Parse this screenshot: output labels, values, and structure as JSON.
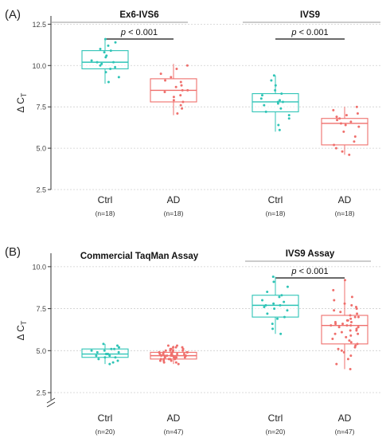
{
  "colors": {
    "ctrl": "#2ec4b6",
    "ad": "#ef6f6c",
    "axis": "#333333",
    "grid": "#cfcfcf",
    "bracket": "#111111",
    "header_line": "#999999"
  },
  "chart_data": [
    {
      "type": "box",
      "panel_label": "(A)",
      "ylabel_main": "Δ C",
      "ylabel_sub": "T",
      "ylim": [
        2.5,
        13.0
      ],
      "yticks": [
        2.5,
        5.0,
        7.5,
        10.0,
        12.5
      ],
      "ytick_labels": [
        "2.5",
        "5.0",
        "7.5",
        "10.0",
        "12.5"
      ],
      "grid": true,
      "groups": [
        {
          "title": "Ex6-IVS6",
          "sig_label_italic": "p",
          "sig_label_rest": " < 0.001",
          "boxes": [
            {
              "name": "Ctrl",
              "n": "(n=18)",
              "group": "ctrl",
              "q1": 9.8,
              "median": 10.2,
              "q3": 10.9,
              "whisker_low": 8.9,
              "whisker_high": 11.6,
              "points": [
                9.0,
                9.3,
                9.6,
                9.8,
                9.9,
                10.0,
                10.1,
                10.2,
                10.2,
                10.3,
                10.5,
                10.6,
                10.8,
                10.9,
                11.0,
                11.2,
                11.4,
                11.6
              ]
            },
            {
              "name": "AD",
              "n": "(n=18)",
              "group": "ad",
              "q1": 7.8,
              "median": 8.5,
              "q3": 9.2,
              "whisker_low": 7.0,
              "whisker_high": 10.1,
              "points": [
                7.1,
                7.4,
                7.6,
                7.8,
                7.9,
                8.1,
                8.2,
                8.4,
                8.5,
                8.5,
                8.7,
                8.8,
                9.0,
                9.1,
                9.3,
                9.5,
                9.8,
                10.0
              ]
            }
          ]
        },
        {
          "title": "IVS9",
          "sig_label_italic": "p",
          "sig_label_rest": " < 0.001",
          "boxes": [
            {
              "name": "Ctrl",
              "n": "(n=18)",
              "group": "ctrl",
              "q1": 7.2,
              "median": 7.8,
              "q3": 8.3,
              "whisker_low": 6.0,
              "whisker_high": 9.4,
              "points": [
                6.1,
                6.4,
                6.8,
                7.0,
                7.2,
                7.4,
                7.6,
                7.7,
                7.8,
                7.8,
                7.9,
                8.0,
                8.2,
                8.3,
                8.5,
                8.8,
                9.1,
                9.4
              ]
            },
            {
              "name": "AD",
              "n": "(n=18)",
              "group": "ad",
              "q1": 5.2,
              "median": 6.5,
              "q3": 6.8,
              "whisker_low": 4.6,
              "whisker_high": 7.5,
              "points": [
                4.6,
                4.8,
                5.0,
                5.2,
                5.4,
                5.7,
                6.0,
                6.3,
                6.4,
                6.5,
                6.6,
                6.7,
                6.8,
                6.9,
                7.0,
                7.1,
                7.3,
                7.5
              ]
            }
          ]
        }
      ]
    },
    {
      "type": "box",
      "panel_label": "(B)",
      "ylabel_main": "Δ C",
      "ylabel_sub": "T",
      "ylim": [
        1.6,
        10.8
      ],
      "yticks": [
        2.5,
        5.0,
        7.5,
        10.0
      ],
      "ytick_labels": [
        "2.5",
        "5.0",
        "7.5",
        "10.0"
      ],
      "axis_break": true,
      "grid": true,
      "groups": [
        {
          "title": "Commercial TaqMan Assay",
          "boxes": [
            {
              "name": "Ctrl",
              "n": "(n=20)",
              "group": "ctrl",
              "q1": 4.6,
              "median": 4.8,
              "q3": 5.1,
              "whisker_low": 4.2,
              "whisker_high": 5.4,
              "points": [
                4.2,
                4.3,
                4.4,
                4.5,
                4.6,
                4.6,
                4.7,
                4.7,
                4.8,
                4.8,
                4.8,
                4.9,
                4.9,
                5.0,
                5.0,
                5.1,
                5.1,
                5.2,
                5.3,
                5.4
              ]
            },
            {
              "name": "AD",
              "n": "(n=47)",
              "group": "ad",
              "q1": 4.5,
              "median": 4.7,
              "q3": 4.9,
              "whisker_low": 4.2,
              "whisker_high": 5.3,
              "points": [
                4.2,
                4.3,
                4.3,
                4.4,
                4.4,
                4.4,
                4.5,
                4.5,
                4.5,
                4.5,
                4.6,
                4.6,
                4.6,
                4.6,
                4.6,
                4.7,
                4.7,
                4.7,
                4.7,
                4.7,
                4.7,
                4.7,
                4.8,
                4.8,
                4.8,
                4.8,
                4.8,
                4.8,
                4.9,
                4.9,
                4.9,
                4.9,
                4.9,
                5.0,
                5.0,
                5.0,
                5.0,
                5.1,
                5.1,
                5.1,
                5.2,
                5.2,
                5.2,
                5.3,
                5.3,
                4.5,
                4.6
              ]
            }
          ]
        },
        {
          "title": "IVS9 Assay",
          "sig_label_italic": "p",
          "sig_label_rest": " < 0.001",
          "boxes": [
            {
              "name": "Ctrl",
              "n": "(n=20)",
              "group": "ctrl",
              "q1": 7.0,
              "median": 7.7,
              "q3": 8.3,
              "whisker_low": 6.0,
              "whisker_high": 9.4,
              "points": [
                6.0,
                6.3,
                6.6,
                6.9,
                7.0,
                7.2,
                7.4,
                7.5,
                7.6,
                7.7,
                7.7,
                7.8,
                7.9,
                8.0,
                8.2,
                8.3,
                8.5,
                8.8,
                9.1,
                9.4
              ]
            },
            {
              "name": "AD",
              "n": "(n=47)",
              "group": "ad",
              "q1": 5.4,
              "median": 6.5,
              "q3": 7.1,
              "whisker_low": 3.9,
              "whisker_high": 9.2,
              "points": [
                3.9,
                4.2,
                4.5,
                4.7,
                4.9,
                5.0,
                5.1,
                5.2,
                5.3,
                5.4,
                5.5,
                5.6,
                5.7,
                5.8,
                5.9,
                6.0,
                6.0,
                6.1,
                6.2,
                6.2,
                6.3,
                6.4,
                6.4,
                6.5,
                6.5,
                6.5,
                6.6,
                6.6,
                6.7,
                6.7,
                6.8,
                6.8,
                6.9,
                7.0,
                7.0,
                7.1,
                7.2,
                7.3,
                7.4,
                7.5,
                7.6,
                7.7,
                7.8,
                8.0,
                8.2,
                8.6,
                9.2
              ]
            }
          ]
        }
      ]
    }
  ]
}
